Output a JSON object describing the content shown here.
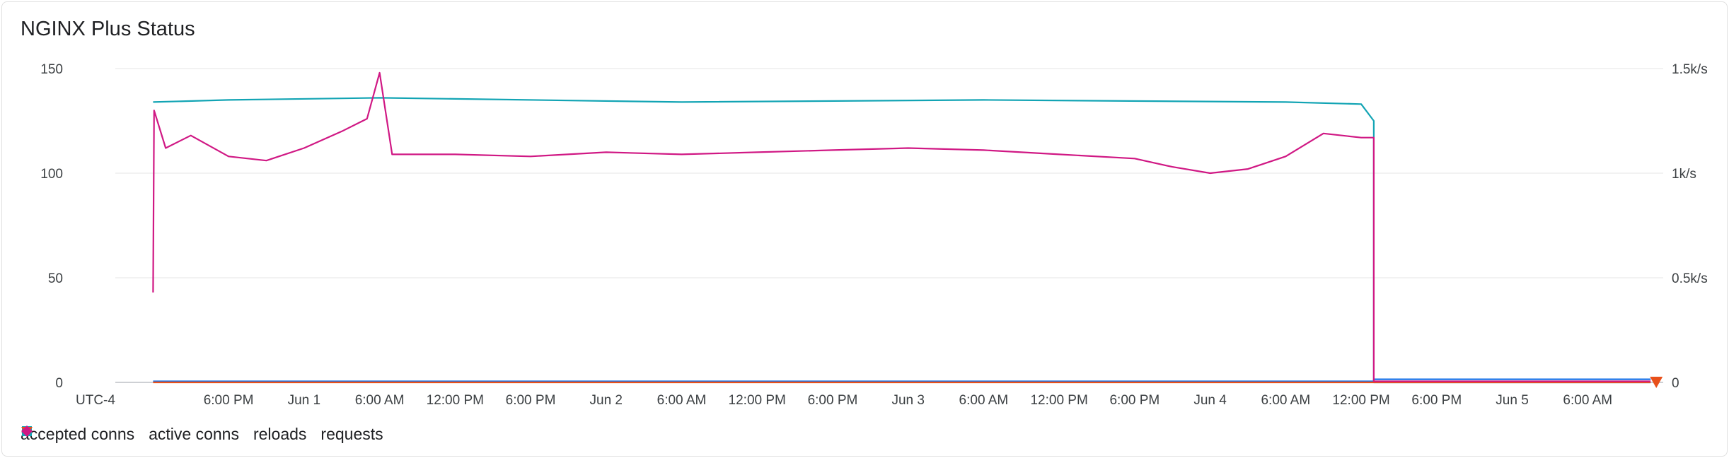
{
  "card": {
    "title": "NGINX Plus Status"
  },
  "chart_data": {
    "type": "line",
    "title": "NGINX Plus Status",
    "timezone_label": "UTC-4",
    "x_ticks": [
      "6:00 PM",
      "Jun 1",
      "6:00 AM",
      "12:00 PM",
      "6:00 PM",
      "Jun 2",
      "6:00 AM",
      "12:00 PM",
      "6:00 PM",
      "Jun 3",
      "6:00 AM",
      "12:00 PM",
      "6:00 PM",
      "Jun 4",
      "6:00 AM",
      "12:00 PM",
      "6:00 PM",
      "Jun 5",
      "6:00 AM"
    ],
    "y_left": {
      "ticks": [
        "0",
        "50",
        "100",
        "150"
      ],
      "ylim": [
        0,
        150
      ]
    },
    "y_right": {
      "ticks": [
        "0",
        "0.5k/s",
        "1k/s",
        "1.5k/s"
      ],
      "ylim": [
        0,
        1500
      ]
    },
    "grid": true,
    "legend_position": "bottom-left",
    "series": [
      {
        "name": "accepted conns",
        "color": "#1a73e8",
        "marker": "circle",
        "axis": "left",
        "x": [
          "May 31 12:00 PM",
          "Jun 4 1:00 PM",
          "Jun 4 1:00 PM",
          "Jun 5 11:00 AM"
        ],
        "values": [
          0.5,
          0.5,
          1.5,
          1.5
        ]
      },
      {
        "name": "active conns",
        "color": "#12a4b4",
        "marker": "square",
        "axis": "left",
        "x": [
          "May 31 12:00 PM",
          "May 31 6:00 PM",
          "Jun 1 6:00 AM",
          "Jun 2 6:00 AM",
          "Jun 3 6:00 AM",
          "Jun 4 6:00 AM",
          "Jun 4 12:00 PM",
          "Jun 4 1:00 PM",
          "Jun 4 1:00 PM",
          "Jun 5 11:00 AM"
        ],
        "values": [
          134,
          135,
          136,
          134,
          135,
          134,
          133,
          125,
          0,
          0
        ]
      },
      {
        "name": "reloads",
        "color": "#e8501a",
        "marker": "triangle-down",
        "axis": "left",
        "x": [
          "May 31 12:00 PM",
          "Jun 5 11:00 AM"
        ],
        "values": [
          0,
          0
        ]
      },
      {
        "name": "requests",
        "color": "#d01884",
        "marker": "diamond",
        "axis": "right",
        "x": [
          "May 31 12:00 PM",
          "May 31 12:05 PM",
          "May 31 1:00 PM",
          "May 31 3:00 PM",
          "May 31 6:00 PM",
          "May 31 9:00 PM",
          "Jun 1 12:00 AM",
          "Jun 1 3:00 AM",
          "Jun 1 5:00 AM",
          "Jun 1 6:00 AM",
          "Jun 1 7:00 AM",
          "Jun 1 12:00 PM",
          "Jun 1 6:00 PM",
          "Jun 2 12:00 AM",
          "Jun 2 6:00 AM",
          "Jun 2 12:00 PM",
          "Jun 2 6:00 PM",
          "Jun 3 12:00 AM",
          "Jun 3 6:00 AM",
          "Jun 3 12:00 PM",
          "Jun 3 6:00 PM",
          "Jun 3 9:00 PM",
          "Jun 4 12:00 AM",
          "Jun 4 3:00 AM",
          "Jun 4 6:00 AM",
          "Jun 4 9:00 AM",
          "Jun 4 12:00 PM",
          "Jun 4 1:00 PM",
          "Jun 4 1:00 PM",
          "Jun 5 11:00 AM"
        ],
        "values": [
          430,
          1300,
          1120,
          1180,
          1080,
          1060,
          1120,
          1200,
          1260,
          1480,
          1090,
          1090,
          1080,
          1100,
          1090,
          1100,
          1110,
          1120,
          1110,
          1090,
          1070,
          1030,
          1000,
          1020,
          1080,
          1190,
          1170,
          1170,
          5,
          5
        ]
      }
    ]
  }
}
